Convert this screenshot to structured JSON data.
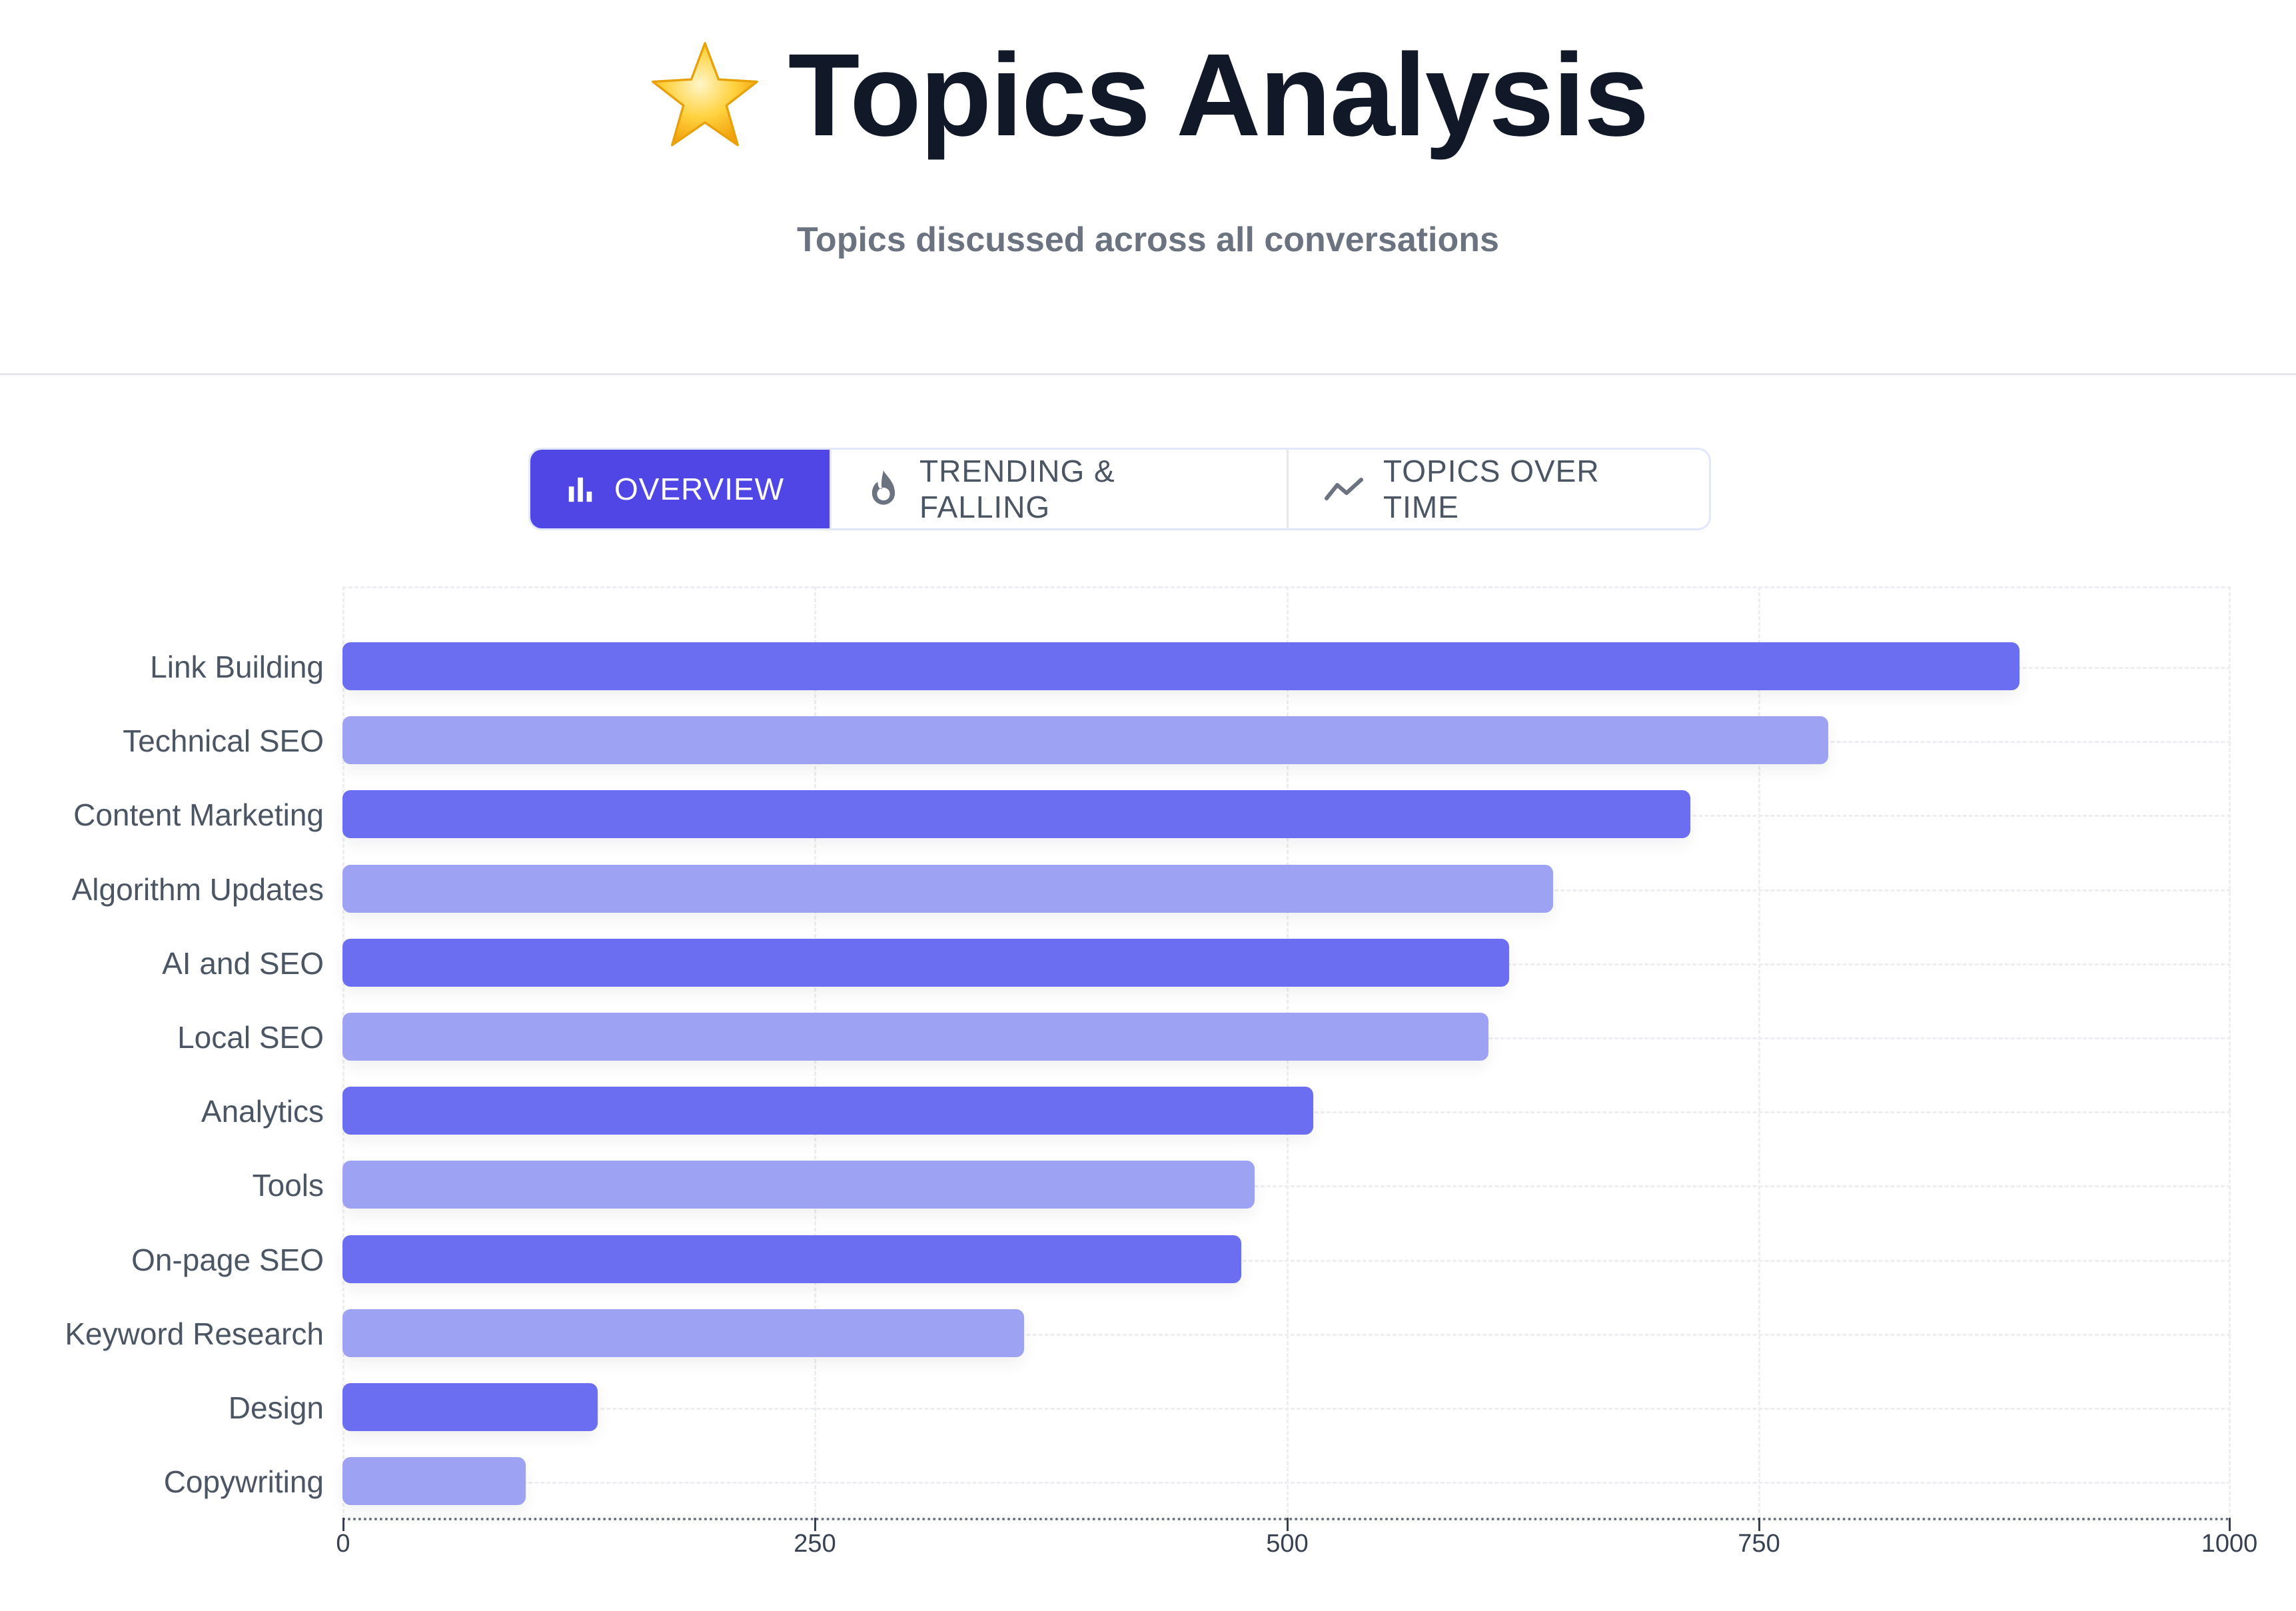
{
  "header": {
    "icon": "star-icon",
    "title": "Topics Analysis",
    "subtitle": "Topics discussed across all conversations"
  },
  "tabs": [
    {
      "label": "OVERVIEW",
      "icon": "bar-chart-icon",
      "active": true
    },
    {
      "label": "TRENDING & FALLING",
      "icon": "flame-icon",
      "active": false
    },
    {
      "label": "TOPICS OVER TIME",
      "icon": "trend-line-icon",
      "active": false
    }
  ],
  "colors": {
    "accent": "#4f46e5",
    "bar_dark": "#6b6ef0",
    "bar_light": "#9ea2f3",
    "title": "#111827",
    "muted": "#6b7280"
  },
  "chart_data": {
    "type": "bar",
    "orientation": "horizontal",
    "title": "",
    "xlabel": "",
    "ylabel": "",
    "categories": [
      "Link Building",
      "Technical SEO",
      "Content Marketing",
      "Algorithm Updates",
      "AI and SEO",
      "Local SEO",
      "Analytics",
      "Tools",
      "On-page SEO",
      "Keyword Research",
      "Design",
      "Copywriting"
    ],
    "values": [
      888,
      787,
      714,
      641,
      618,
      607,
      514,
      483,
      476,
      361,
      135,
      97
    ],
    "xlim": [
      0,
      1000
    ],
    "xticks": [
      "0",
      "250",
      "500",
      "750",
      "1000"
    ],
    "grid": true,
    "legend": null
  }
}
